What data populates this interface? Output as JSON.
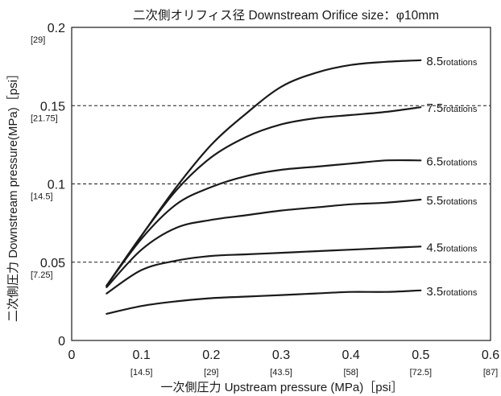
{
  "chart_data": {
    "type": "line",
    "title": "二次側オリフィス径 Downstream Orifice size：φ10mm",
    "xlabel": "一次側圧力 Upstream pressure (MPa)［psi］",
    "ylabel": "二次側圧力 Downstream pressure(MPa)［psi］",
    "xlim": [
      0,
      0.6
    ],
    "ylim": [
      0,
      0.2
    ],
    "x_ticks": [
      {
        "value": 0,
        "label": "0",
        "sub": ""
      },
      {
        "value": 0.1,
        "label": "0.1",
        "sub": "[14.5]"
      },
      {
        "value": 0.2,
        "label": "0.2",
        "sub": "[29]"
      },
      {
        "value": 0.3,
        "label": "0.3",
        "sub": "[43.5]"
      },
      {
        "value": 0.4,
        "label": "0.4",
        "sub": "[58]"
      },
      {
        "value": 0.5,
        "label": "0.5",
        "sub": "[72.5]"
      },
      {
        "value": 0.6,
        "label": "0.6",
        "sub": "[87]"
      }
    ],
    "y_ticks": [
      {
        "value": 0,
        "label": "0",
        "sub": ""
      },
      {
        "value": 0.05,
        "label": "0.05",
        "sub": "[7.25]"
      },
      {
        "value": 0.1,
        "label": "0.1",
        "sub": "[14.5]"
      },
      {
        "value": 0.15,
        "label": "0.15",
        "sub": "[21.75]"
      },
      {
        "value": 0.2,
        "label": "0.2",
        "sub": "[29]"
      }
    ],
    "gridlines_y": [
      0.05,
      0.1,
      0.15
    ],
    "grid_style": "dashed",
    "series": [
      {
        "name": "8.5",
        "unit": "rotations",
        "points": [
          [
            0.05,
            0.035
          ],
          [
            0.1,
            0.067
          ],
          [
            0.15,
            0.098
          ],
          [
            0.2,
            0.125
          ],
          [
            0.25,
            0.145
          ],
          [
            0.3,
            0.162
          ],
          [
            0.35,
            0.171
          ],
          [
            0.4,
            0.176
          ],
          [
            0.45,
            0.178
          ],
          [
            0.5,
            0.179
          ]
        ]
      },
      {
        "name": "7.5",
        "unit": "rotations",
        "points": [
          [
            0.05,
            0.035
          ],
          [
            0.1,
            0.067
          ],
          [
            0.15,
            0.096
          ],
          [
            0.2,
            0.117
          ],
          [
            0.25,
            0.13
          ],
          [
            0.3,
            0.138
          ],
          [
            0.35,
            0.142
          ],
          [
            0.4,
            0.144
          ],
          [
            0.45,
            0.146
          ],
          [
            0.5,
            0.149
          ]
        ]
      },
      {
        "name": "6.5",
        "unit": "rotations",
        "points": [
          [
            0.05,
            0.035
          ],
          [
            0.1,
            0.065
          ],
          [
            0.15,
            0.087
          ],
          [
            0.2,
            0.098
          ],
          [
            0.25,
            0.105
          ],
          [
            0.3,
            0.109
          ],
          [
            0.35,
            0.111
          ],
          [
            0.4,
            0.113
          ],
          [
            0.45,
            0.115
          ],
          [
            0.5,
            0.115
          ]
        ]
      },
      {
        "name": "5.5",
        "unit": "rotations",
        "points": [
          [
            0.05,
            0.034
          ],
          [
            0.1,
            0.058
          ],
          [
            0.15,
            0.072
          ],
          [
            0.2,
            0.077
          ],
          [
            0.25,
            0.08
          ],
          [
            0.3,
            0.083
          ],
          [
            0.35,
            0.085
          ],
          [
            0.4,
            0.087
          ],
          [
            0.45,
            0.088
          ],
          [
            0.5,
            0.09
          ]
        ]
      },
      {
        "name": "4.5",
        "unit": "rotations",
        "points": [
          [
            0.05,
            0.03
          ],
          [
            0.1,
            0.045
          ],
          [
            0.15,
            0.051
          ],
          [
            0.2,
            0.054
          ],
          [
            0.25,
            0.055
          ],
          [
            0.3,
            0.056
          ],
          [
            0.35,
            0.057
          ],
          [
            0.4,
            0.058
          ],
          [
            0.45,
            0.059
          ],
          [
            0.5,
            0.06
          ]
        ]
      },
      {
        "name": "3.5",
        "unit": "rotations",
        "points": [
          [
            0.05,
            0.017
          ],
          [
            0.1,
            0.022
          ],
          [
            0.15,
            0.025
          ],
          [
            0.2,
            0.027
          ],
          [
            0.25,
            0.028
          ],
          [
            0.3,
            0.029
          ],
          [
            0.35,
            0.03
          ],
          [
            0.4,
            0.031
          ],
          [
            0.45,
            0.031
          ],
          [
            0.5,
            0.032
          ]
        ]
      }
    ]
  }
}
